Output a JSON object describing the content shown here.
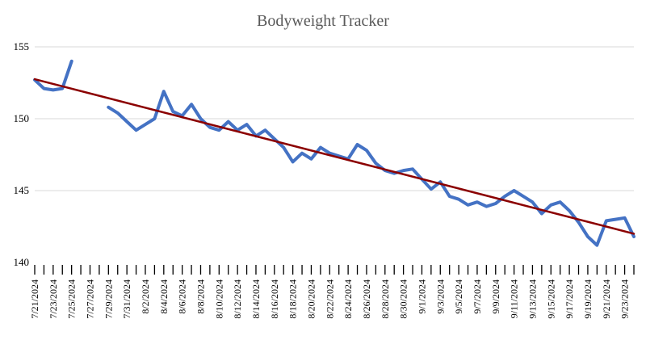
{
  "chart_data": {
    "type": "line",
    "title": "Bodyweight Tracker",
    "xlabel": "",
    "ylabel": "",
    "ylim": [
      140,
      155
    ],
    "yticks": [
      140,
      145,
      150,
      155
    ],
    "grid": true,
    "legend": "none",
    "x": [
      "7/21/2024",
      "7/22/2024",
      "7/23/2024",
      "7/24/2024",
      "7/25/2024",
      "7/26/2024",
      "7/27/2024",
      "7/28/2024",
      "7/29/2024",
      "7/30/2024",
      "7/31/2024",
      "8/1/2024",
      "8/2/2024",
      "8/3/2024",
      "8/4/2024",
      "8/5/2024",
      "8/6/2024",
      "8/7/2024",
      "8/8/2024",
      "8/9/2024",
      "8/10/2024",
      "8/11/2024",
      "8/12/2024",
      "8/13/2024",
      "8/14/2024",
      "8/15/2024",
      "8/16/2024",
      "8/17/2024",
      "8/18/2024",
      "8/19/2024",
      "8/20/2024",
      "8/21/2024",
      "8/22/2024",
      "8/23/2024",
      "8/24/2024",
      "8/25/2024",
      "8/26/2024",
      "8/27/2024",
      "8/28/2024",
      "8/29/2024",
      "8/30/2024",
      "8/31/2024",
      "9/1/2024",
      "9/2/2024",
      "9/3/2024",
      "9/4/2024",
      "9/5/2024",
      "9/6/2024",
      "9/7/2024",
      "9/8/2024",
      "9/9/2024",
      "9/10/2024",
      "9/11/2024",
      "9/12/2024",
      "9/13/2024",
      "9/14/2024",
      "9/15/2024",
      "9/16/2024",
      "9/17/2024",
      "9/18/2024",
      "9/19/2024",
      "9/20/2024",
      "9/21/2024",
      "9/22/2024",
      "9/23/2024",
      "9/24/2024"
    ],
    "xtick_labels": [
      "7/21/2024",
      "7/23/2024",
      "7/25/2024",
      "7/27/2024",
      "7/29/2024",
      "7/31/2024",
      "8/2/2024",
      "8/4/2024",
      "8/6/2024",
      "8/8/2024",
      "8/10/2024",
      "8/12/2024",
      "8/14/2024",
      "8/16/2024",
      "8/18/2024",
      "8/20/2024",
      "8/22/2024",
      "8/24/2024",
      "8/26/2024",
      "8/28/2024",
      "8/30/2024",
      "9/1/2024",
      "9/3/2024",
      "9/5/2024",
      "9/7/2024",
      "9/9/2024",
      "9/11/2024",
      "9/13/2024",
      "9/15/2024",
      "9/17/2024",
      "9/19/2024",
      "9/21/2024",
      "9/23/2024"
    ],
    "series": [
      {
        "color": "#4472c4",
        "values": [
          152.7,
          152.1,
          152.0,
          152.1,
          154.0,
          null,
          null,
          null,
          150.8,
          150.4,
          149.8,
          149.2,
          149.6,
          150.0,
          151.9,
          150.5,
          150.2,
          151.0,
          150.0,
          149.4,
          149.2,
          149.8,
          149.2,
          149.6,
          148.8,
          149.2,
          148.6,
          148.0,
          147.0,
          147.6,
          147.2,
          148.0,
          147.6,
          147.4,
          147.2,
          148.2,
          147.8,
          146.9,
          146.4,
          146.2,
          146.4,
          146.5,
          145.8,
          145.1,
          145.6,
          144.6,
          144.4,
          144.0,
          144.2,
          143.9,
          144.1,
          144.6,
          145.0,
          144.6,
          144.2,
          143.4,
          144.0,
          144.2,
          143.6,
          142.8,
          141.8,
          141.2,
          142.9,
          143.0,
          143.1,
          141.8
        ]
      },
      {
        "color": "#8b0000",
        "kind": "trendline",
        "start": 152.75,
        "end": 142.0
      }
    ]
  }
}
